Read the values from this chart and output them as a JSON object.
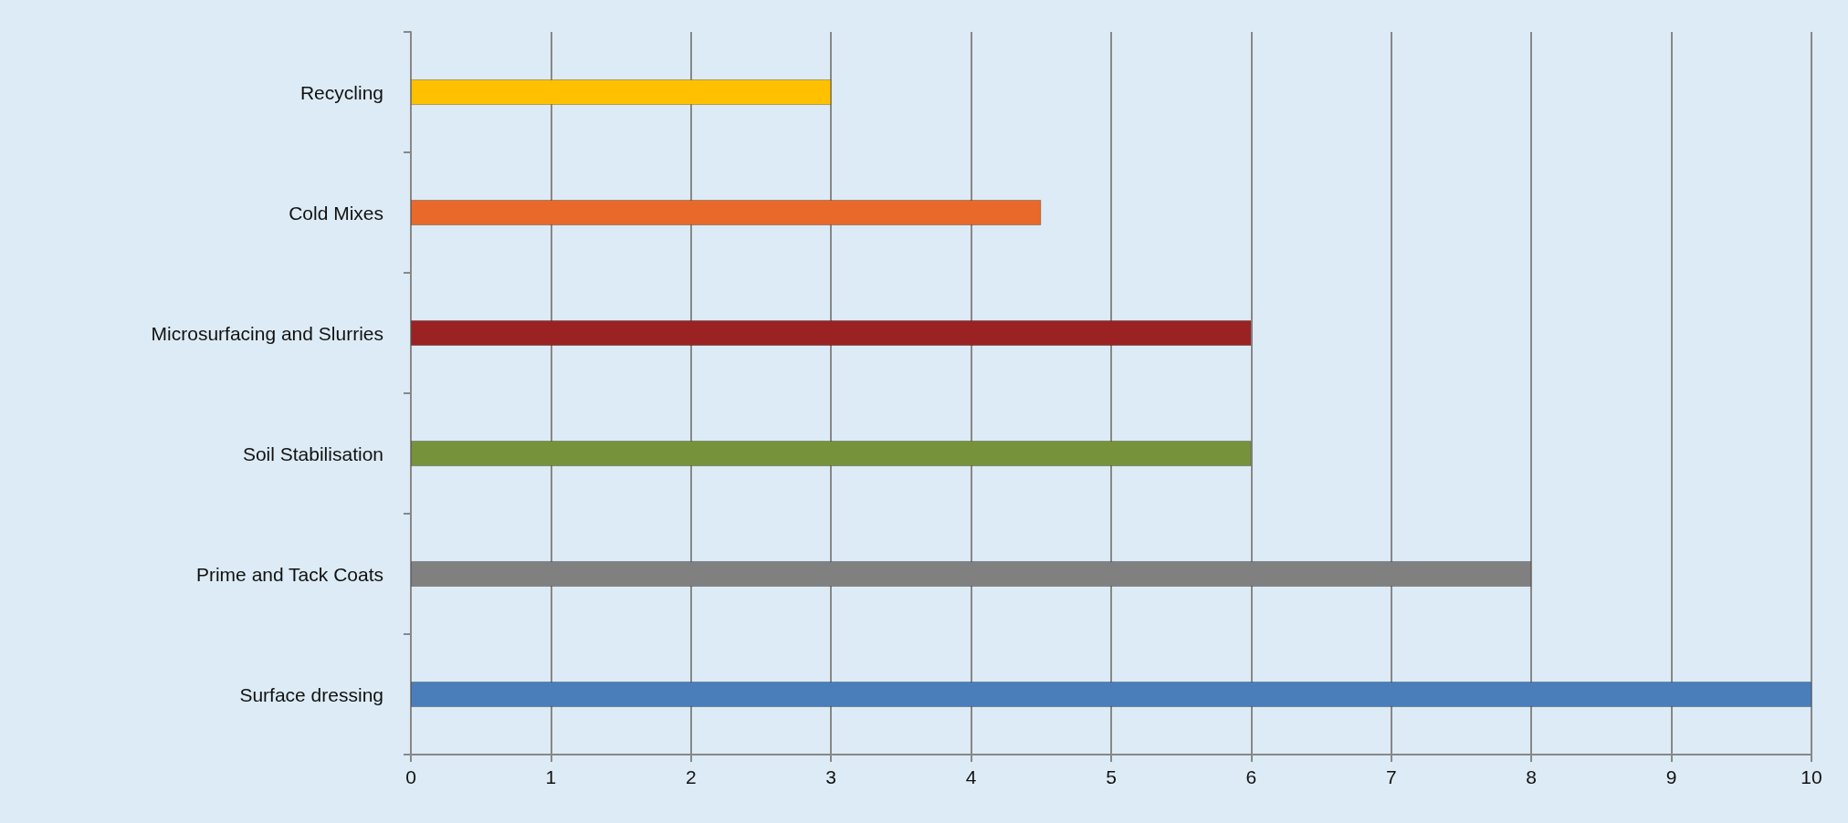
{
  "chart_data": {
    "type": "bar",
    "orientation": "horizontal",
    "categories": [
      "Recycling",
      "Cold Mixes",
      "Microsurfacing and Slurries",
      "Soil Stabilisation",
      "Prime and Tack Coats",
      "Surface dressing"
    ],
    "values": [
      3,
      4.5,
      6,
      6,
      8,
      10
    ],
    "colors": [
      "#ffc000",
      "#e8692a",
      "#9b2222",
      "#76933c",
      "#808080",
      "#4a7ebb"
    ],
    "xlim": [
      0,
      10
    ],
    "xticks": [
      0,
      1,
      2,
      3,
      4,
      5,
      6,
      7,
      8,
      9,
      10
    ],
    "grid": "x"
  }
}
